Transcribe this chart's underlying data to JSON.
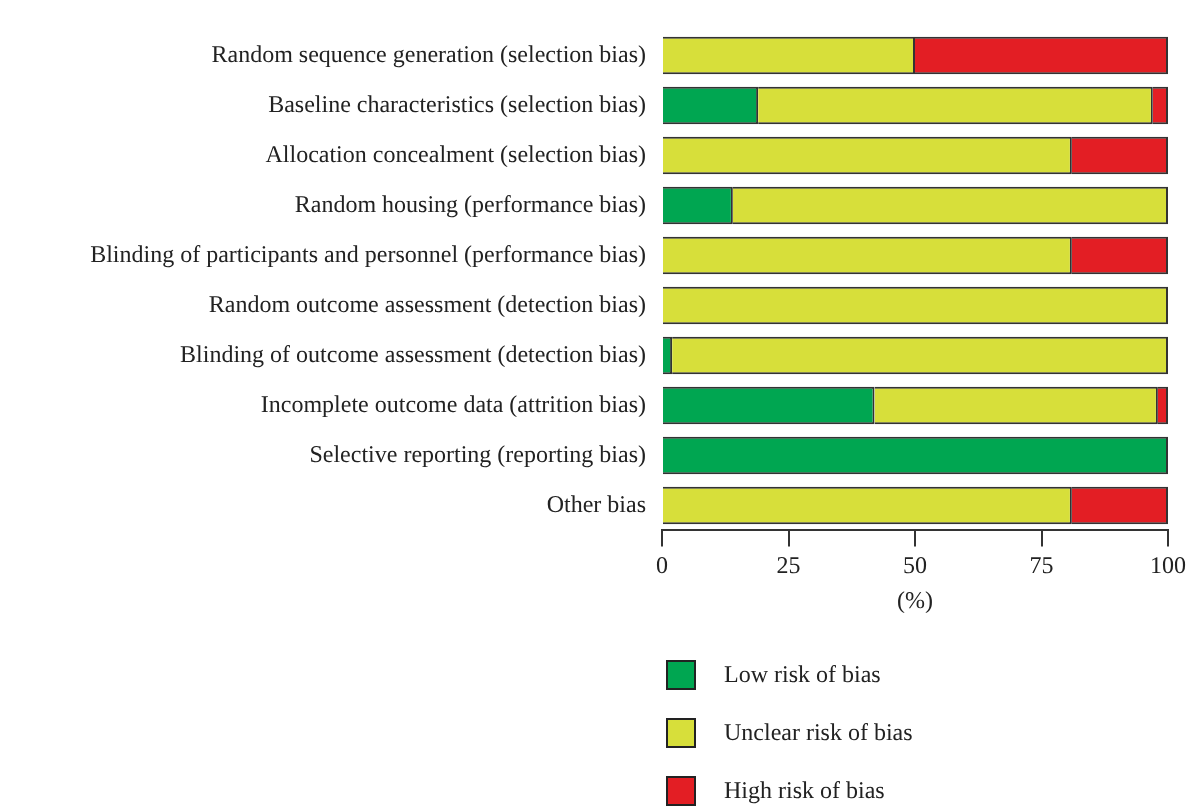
{
  "chart_data": {
    "type": "bar",
    "orientation": "horizontal",
    "stacked": true,
    "categories": [
      "Random sequence generation (selection bias)",
      "Baseline characteristics (selection bias)",
      "Allocation concealment (selection bias)",
      "Random housing (performance bias)",
      "Blinding of participants and personnel (performance bias)",
      "Random outcome assessment (detection bias)",
      "Blinding of outcome assessment (detection bias)",
      "Incomplete outcome data (attrition bias)",
      "Selective reporting (reporting bias)",
      "Other bias"
    ],
    "series": [
      {
        "name": "Low risk of bias",
        "color": "#00a651",
        "values": [
          0,
          19,
          0,
          14,
          0,
          0,
          2,
          42,
          100,
          0
        ]
      },
      {
        "name": "Unclear risk of bias",
        "color": "#d7df3a",
        "values": [
          50,
          78,
          81,
          86,
          81,
          100,
          98,
          56,
          0,
          81
        ]
      },
      {
        "name": "High risk of bias",
        "color": "#e31e24",
        "values": [
          50,
          3,
          19,
          0,
          19,
          0,
          0,
          2,
          0,
          19
        ]
      }
    ],
    "xlabel": "(%)",
    "xlim": [
      0,
      100
    ],
    "xticks": [
      0,
      25,
      50,
      75,
      100
    ],
    "grid": false,
    "legend": "bottom"
  }
}
